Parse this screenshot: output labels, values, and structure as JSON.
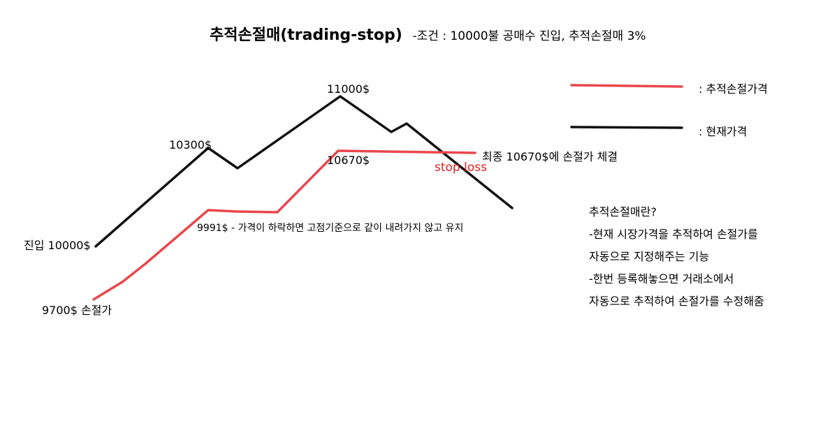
{
  "title": {
    "main": "추적손절매(trading-stop)",
    "condition": "-조건 : 10000불 공매수 진입, 추적손절매 3%"
  },
  "legend": {
    "trailing_stop": {
      "label": ": 추적손절가격",
      "color": "#e8474c"
    },
    "current_price": {
      "label": ": 현재가격",
      "color": "#111111"
    }
  },
  "annotations": {
    "entry": "진입 10000$",
    "initial_stop": "9700$ 손절가",
    "peak_1": "10300$",
    "peak_2": "11000$",
    "stop_level": "10670$",
    "stop_note": "9991$ - 가격이 하락하면 고점기준으로 같이 내려가지 않고 유지",
    "stop_loss": "stop loss",
    "final": "최종 10670$에 손절가 체결"
  },
  "description": {
    "heading": "추적손절매란?",
    "lines": [
      "-현재 시장가격을 추적하여 손절가를",
      "자동으로 지정해주는 기능",
      "-한번 등록해놓으면 거래소에서",
      "자동으로 추적하여 손절가를 수정해줌"
    ]
  },
  "chart_data": {
    "type": "line",
    "series": [
      {
        "name": "현재가격",
        "values": [
          10000,
          10300,
          10150,
          11000,
          10800,
          10850,
          10450
        ]
      },
      {
        "name": "추적손절가격",
        "values": [
          9700,
          9991,
          9991,
          10670,
          10670,
          10670,
          10670
        ]
      }
    ]
  }
}
